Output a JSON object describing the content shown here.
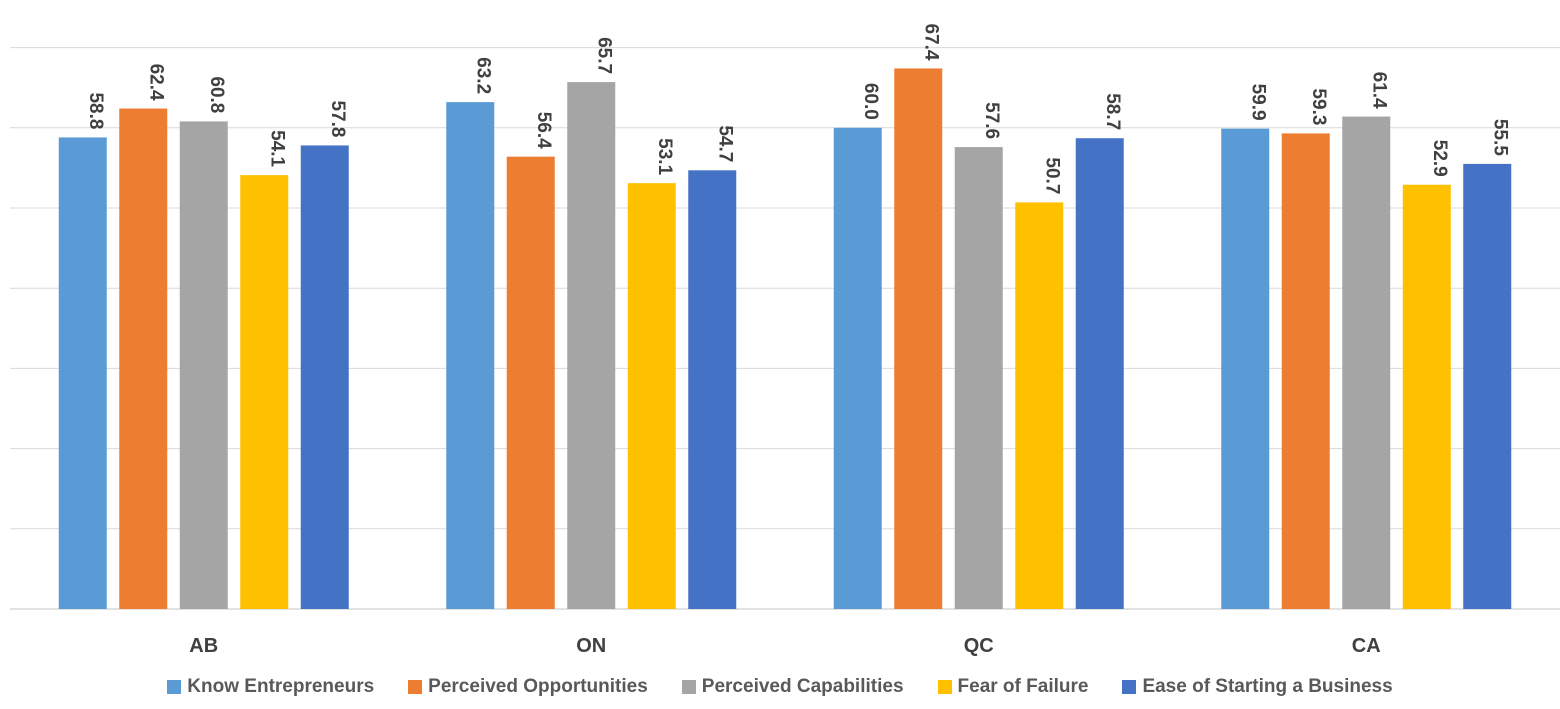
{
  "chart_data": {
    "type": "bar",
    "categories": [
      "AB",
      "ON",
      "QC",
      "CA"
    ],
    "series": [
      {
        "name": "Know Entrepreneurs",
        "color": "#5B9BD5",
        "values": [
          58.8,
          63.2,
          60.0,
          59.9
        ]
      },
      {
        "name": "Perceived Opportunities",
        "color": "#ED7D31",
        "values": [
          62.4,
          56.4,
          67.4,
          59.3
        ]
      },
      {
        "name": "Perceived Capabilities",
        "color": "#A5A5A5",
        "values": [
          60.8,
          65.7,
          57.6,
          61.4
        ]
      },
      {
        "name": "Fear of Failure",
        "color": "#FFC000",
        "values": [
          54.1,
          53.1,
          50.7,
          52.9
        ]
      },
      {
        "name": "Ease of Starting a Business",
        "color": "#4472C4",
        "values": [
          57.8,
          54.7,
          58.7,
          55.5
        ]
      }
    ],
    "value_labels": [
      [
        "58.8",
        "63.2",
        "60.0",
        "59.9"
      ],
      [
        "62.4",
        "56.4",
        "67.4",
        "59.3"
      ],
      [
        "60.8",
        "65.7",
        "57.6",
        "61.4"
      ],
      [
        "54.1",
        "53.1",
        "50.7",
        "52.9"
      ],
      [
        "57.8",
        "54.7",
        "58.7",
        "55.5"
      ]
    ],
    "ylim": [
      0,
      75
    ],
    "gridline_step": 10,
    "grid": true,
    "legend_position": "bottom",
    "title": "",
    "xlabel": "",
    "ylabel": ""
  }
}
